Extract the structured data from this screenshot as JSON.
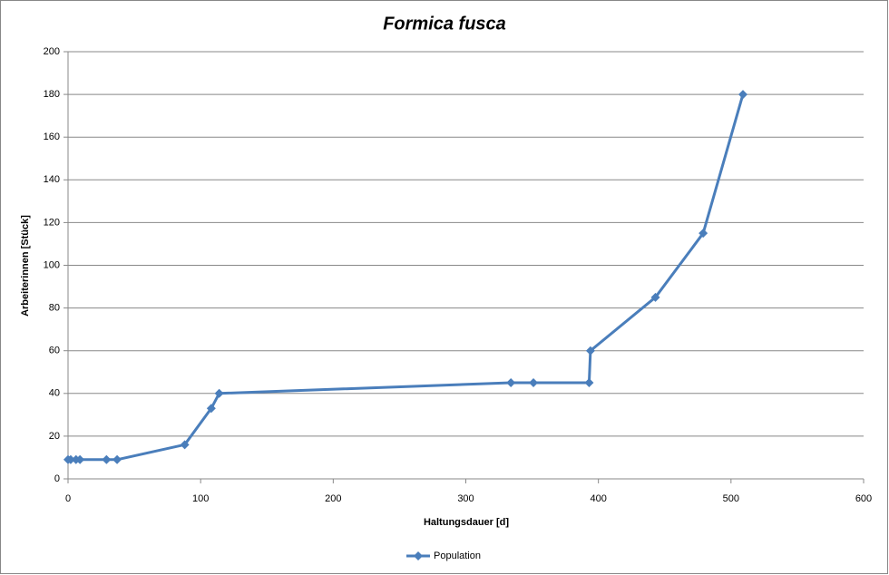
{
  "chart_data": {
    "type": "line",
    "title": "Formica fusca",
    "x_label": "Haltungsdauer [d]",
    "y_label": "Arbeiterinnen [Stück]",
    "x": [
      0,
      2,
      6,
      9,
      29,
      37,
      88,
      108,
      114,
      334,
      351,
      393,
      394,
      443,
      479,
      509
    ],
    "series": [
      {
        "name": "Population",
        "color": "#4a7ebb",
        "values": [
          9,
          9,
          9,
          9,
          9,
          9,
          16,
          33,
          40,
          45,
          45,
          45,
          60,
          85,
          115,
          180
        ]
      }
    ],
    "xlim": [
      0,
      600
    ],
    "xticks": [
      0,
      100,
      200,
      300,
      400,
      500,
      600
    ],
    "ylim": [
      0,
      200
    ],
    "yticks": [
      0,
      20,
      40,
      60,
      80,
      100,
      120,
      140,
      160,
      180,
      200
    ],
    "grid": true,
    "legend": "bottom"
  }
}
